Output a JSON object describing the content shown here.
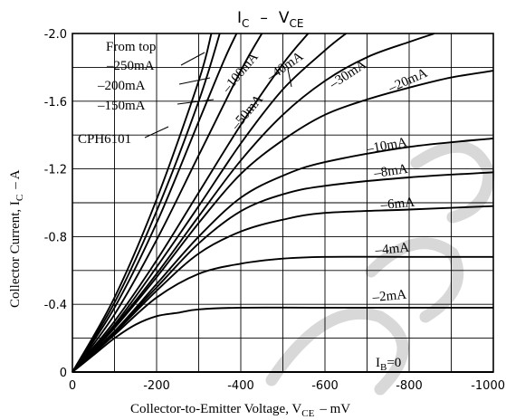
{
  "chart_data": {
    "type": "line",
    "title": "I",
    "title_sub_1": "C",
    "title_dash": "–",
    "title_main_2": "V",
    "title_sub_2": "CE",
    "part_number": "CPH6101",
    "legend_note": "From top",
    "xlabel": "Collector-to-Emitter Voltage, V",
    "xlabel_sub": "CE",
    "xlabel_unit": "–   mV",
    "ylabel": "Collector Current, I",
    "ylabel_sub": "C",
    "ylabel_unit": "–   A",
    "xlim": [
      0,
      -1000
    ],
    "ylim": [
      0,
      -2.0
    ],
    "x_ticks": [
      "0",
      "-200",
      "-400",
      "-600",
      "-800",
      "-1000"
    ],
    "x_tick_values": [
      0,
      -200,
      -400,
      -600,
      -800,
      -1000
    ],
    "y_ticks": [
      "0",
      "-0.4",
      "-0.8",
      "-1.2",
      "-1.6",
      "-2.0"
    ],
    "y_tick_values": [
      0,
      -0.4,
      -0.8,
      -1.2,
      -1.6,
      -2.0
    ],
    "x_grid_step": -100,
    "y_grid_step": -0.2,
    "grid": true,
    "series": [
      {
        "name": "–2mA",
        "points": [
          [
            0,
            0
          ],
          [
            -50,
            -0.1
          ],
          [
            -100,
            -0.2
          ],
          [
            -150,
            -0.28
          ],
          [
            -200,
            -0.33
          ],
          [
            -250,
            -0.35
          ],
          [
            -300,
            -0.37
          ],
          [
            -400,
            -0.38
          ],
          [
            -600,
            -0.38
          ],
          [
            -1000,
            -0.38
          ]
        ]
      },
      {
        "name": "–4mA",
        "points": [
          [
            0,
            0
          ],
          [
            -100,
            -0.22
          ],
          [
            -200,
            -0.44
          ],
          [
            -300,
            -0.58
          ],
          [
            -400,
            -0.64
          ],
          [
            -500,
            -0.67
          ],
          [
            -600,
            -0.68
          ],
          [
            -800,
            -0.68
          ],
          [
            -1000,
            -0.68
          ]
        ]
      },
      {
        "name": "–6mA",
        "points": [
          [
            0,
            0
          ],
          [
            -100,
            -0.23
          ],
          [
            -200,
            -0.48
          ],
          [
            -300,
            -0.7
          ],
          [
            -400,
            -0.83
          ],
          [
            -500,
            -0.9
          ],
          [
            -600,
            -0.94
          ],
          [
            -800,
            -0.96
          ],
          [
            -1000,
            -0.98
          ]
        ]
      },
      {
        "name": "–8mA",
        "points": [
          [
            0,
            0
          ],
          [
            -100,
            -0.24
          ],
          [
            -200,
            -0.5
          ],
          [
            -300,
            -0.76
          ],
          [
            -400,
            -0.95
          ],
          [
            -500,
            -1.05
          ],
          [
            -600,
            -1.1
          ],
          [
            -800,
            -1.15
          ],
          [
            -1000,
            -1.18
          ]
        ]
      },
      {
        "name": "–10mA",
        "points": [
          [
            0,
            0
          ],
          [
            -100,
            -0.24
          ],
          [
            -200,
            -0.52
          ],
          [
            -300,
            -0.8
          ],
          [
            -400,
            -1.03
          ],
          [
            -500,
            -1.16
          ],
          [
            -600,
            -1.24
          ],
          [
            -800,
            -1.33
          ],
          [
            -1000,
            -1.38
          ]
        ]
      },
      {
        "name": "–20mA",
        "points": [
          [
            0,
            0
          ],
          [
            -100,
            -0.26
          ],
          [
            -200,
            -0.56
          ],
          [
            -300,
            -0.88
          ],
          [
            -400,
            -1.17
          ],
          [
            -500,
            -1.37
          ],
          [
            -600,
            -1.52
          ],
          [
            -700,
            -1.61
          ],
          [
            -800,
            -1.68
          ],
          [
            -900,
            -1.74
          ],
          [
            -1000,
            -1.78
          ]
        ]
      },
      {
        "name": "–30mA",
        "points": [
          [
            0,
            0
          ],
          [
            -100,
            -0.27
          ],
          [
            -200,
            -0.58
          ],
          [
            -300,
            -0.92
          ],
          [
            -400,
            -1.25
          ],
          [
            -500,
            -1.52
          ],
          [
            -600,
            -1.72
          ],
          [
            -700,
            -1.86
          ],
          [
            -800,
            -1.95
          ],
          [
            -860,
            -2.0
          ]
        ]
      },
      {
        "name": "–40mA",
        "points": [
          [
            0,
            0
          ],
          [
            -100,
            -0.28
          ],
          [
            -200,
            -0.62
          ],
          [
            -300,
            -0.98
          ],
          [
            -400,
            -1.35
          ],
          [
            -500,
            -1.67
          ],
          [
            -600,
            -1.9
          ],
          [
            -650,
            -2.0
          ]
        ]
      },
      {
        "name": "–50mA",
        "points": [
          [
            0,
            0
          ],
          [
            -100,
            -0.3
          ],
          [
            -200,
            -0.66
          ],
          [
            -300,
            -1.06
          ],
          [
            -400,
            -1.46
          ],
          [
            -500,
            -1.82
          ],
          [
            -560,
            -2.0
          ]
        ]
      },
      {
        "name": "–100mA",
        "points": [
          [
            0,
            0
          ],
          [
            -100,
            -0.34
          ],
          [
            -200,
            -0.78
          ],
          [
            -300,
            -1.28
          ],
          [
            -400,
            -1.78
          ],
          [
            -450,
            -2.0
          ]
        ]
      },
      {
        "name": "–150mA",
        "points": [
          [
            0,
            0
          ],
          [
            -100,
            -0.38
          ],
          [
            -200,
            -0.88
          ],
          [
            -300,
            -1.48
          ],
          [
            -360,
            -1.84
          ],
          [
            -390,
            -2.0
          ]
        ]
      },
      {
        "name": "–200mA",
        "points": [
          [
            0,
            0
          ],
          [
            -100,
            -0.41
          ],
          [
            -200,
            -0.95
          ],
          [
            -300,
            -1.6
          ],
          [
            -350,
            -2.0
          ]
        ]
      },
      {
        "name": "–250mA",
        "points": [
          [
            0,
            0
          ],
          [
            -100,
            -0.44
          ],
          [
            -200,
            -1.02
          ],
          [
            -300,
            -1.72
          ],
          [
            -330,
            -2.0
          ]
        ]
      },
      {
        "name": "I",
        "name_sub": "B",
        "name_tail": "=0",
        "points": [
          [
            0,
            0
          ],
          [
            -1000,
            0
          ]
        ]
      }
    ]
  }
}
